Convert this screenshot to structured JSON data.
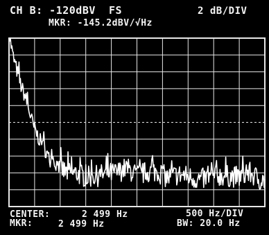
{
  "header": {
    "channel": "CH B: -120dBV  FS",
    "scale": "2 dB/DIV",
    "marker_readout": "MKR: -145.2dBV/√Hz"
  },
  "footer": {
    "center_label": "CENTER:",
    "center_value": "2 499 Hz",
    "marker_label": "MKR:",
    "marker_value": "2 499 Hz",
    "span": "500 Hz/DIV",
    "bandwidth": "BW: 20.0 Hz"
  },
  "colors": {
    "background": "#000000",
    "trace": "#ffffff",
    "grid": "#e8e8e8"
  },
  "chart_data": {
    "type": "line",
    "xlabel": "",
    "ylabel": "",
    "x_unit": "Hz",
    "x_center": 2499,
    "x_per_div": 500,
    "xlim": [
      0,
      4999
    ],
    "y_per_div_db": 2,
    "ylim": [
      -20,
      0
    ],
    "grid": true,
    "x": [
      0,
      80,
      160,
      240,
      320,
      400,
      480,
      560,
      640,
      720,
      800,
      900,
      1000,
      1100,
      1200,
      1350,
      1500,
      1700,
      1900,
      2100,
      2300,
      2500,
      2700,
      2900,
      3100,
      3300,
      3500,
      3700,
      3900,
      4100,
      4300,
      4500,
      4700,
      4900,
      4999
    ],
    "y": [
      0.5,
      -2.2,
      -4.0,
      -5.8,
      -7.0,
      -8.8,
      -10.5,
      -11.6,
      -12.6,
      -13.4,
      -14.6,
      -14.8,
      -15.4,
      -15.9,
      -16.0,
      -16.1,
      -16.5,
      -16.4,
      -16.1,
      -16.0,
      -15.4,
      -16.3,
      -15.9,
      -15.8,
      -16.6,
      -16.2,
      -16.4,
      -16.8,
      -16.6,
      -16.3,
      -16.4,
      -16.5,
      -16.0,
      -16.8,
      -16.9
    ]
  }
}
